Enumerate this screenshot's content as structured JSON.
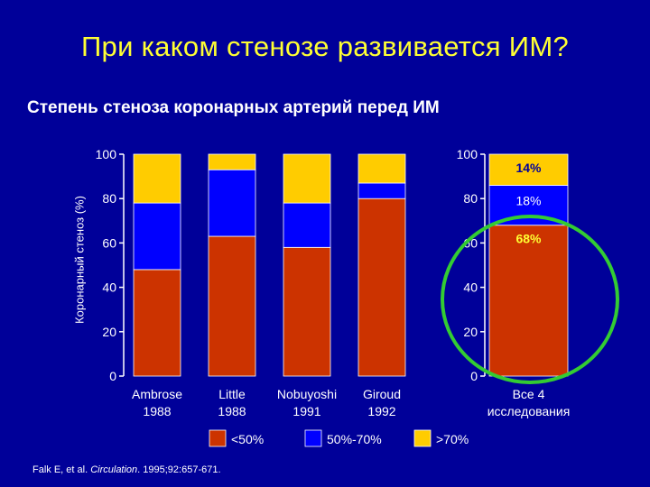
{
  "title": "При каком стенозе развивается ИМ?",
  "subtitle": "Степень стеноза коронарных артерий перед ИМ",
  "citation": {
    "prefix": "Falk E, et al. ",
    "journal": "Circulation",
    "suffix": ". 1995;92:657-671."
  },
  "colors": {
    "background": "#000099",
    "title": "#ffff33",
    "less50": "#cc3300",
    "mid": "#0000ff",
    "over70": "#ffcc00",
    "highlight_circle": "#33cc33",
    "highlight_label": "#ffff33"
  },
  "chart_data": [
    {
      "type": "bar",
      "stacked": true,
      "ylabel": "Коронарный стеноз (%)",
      "ylim": [
        0,
        100
      ],
      "yticks": [
        "0",
        "20",
        "40",
        "60",
        "80",
        "100"
      ],
      "categories": [
        {
          "name": "Ambrose",
          "year": "1988"
        },
        {
          "name": "Little",
          "year": "1988"
        },
        {
          "name": "Nobuyoshi",
          "year": "1991"
        },
        {
          "name": "Giroud",
          "year": "1992"
        }
      ],
      "series": [
        {
          "name": "<50%",
          "key": "less50",
          "values": [
            48,
            63,
            58,
            80
          ]
        },
        {
          "name": "50%-70%",
          "key": "mid",
          "values": [
            30,
            30,
            20,
            7
          ]
        },
        {
          "name": ">70%",
          "key": "over70",
          "values": [
            22,
            7,
            22,
            13
          ]
        }
      ],
      "legend_position": "bottom"
    },
    {
      "type": "bar",
      "stacked": true,
      "ylim": [
        0,
        100
      ],
      "yticks": [
        "0",
        "20",
        "40",
        "60",
        "80",
        "100"
      ],
      "categories": [
        {
          "name": "Все 4",
          "year": "исследования"
        }
      ],
      "series": [
        {
          "name": "<50%",
          "key": "less50",
          "values": [
            68
          ],
          "label": "68%"
        },
        {
          "name": "50%-70%",
          "key": "mid",
          "values": [
            18
          ],
          "label": "18%"
        },
        {
          "name": ">70%",
          "key": "over70",
          "values": [
            14
          ],
          "label": "14%"
        }
      ]
    }
  ]
}
